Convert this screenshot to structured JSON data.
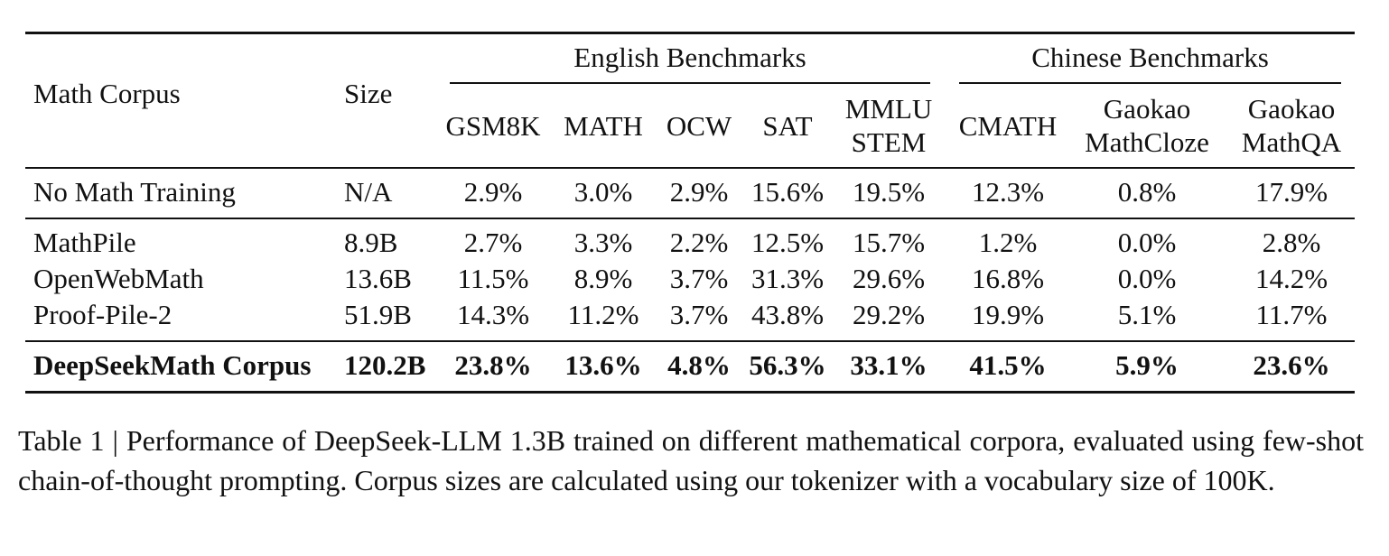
{
  "table": {
    "header": {
      "corpus": "Math Corpus",
      "size": "Size",
      "groups": [
        {
          "label": "English Benchmarks",
          "columns": [
            [
              "GSM8K"
            ],
            [
              "MATH"
            ],
            [
              "OCW"
            ],
            [
              "SAT"
            ],
            [
              "MMLU",
              "STEM"
            ]
          ]
        },
        {
          "label": "Chinese Benchmarks",
          "columns": [
            [
              "CMATH"
            ],
            [
              "Gaokao",
              "MathCloze"
            ],
            [
              "Gaokao",
              "MathQA"
            ]
          ]
        }
      ]
    },
    "row_groups": [
      {
        "bold": false,
        "rows": [
          [
            "No Math Training",
            "N/A",
            "2.9%",
            "3.0%",
            "2.9%",
            "15.6%",
            "19.5%",
            "12.3%",
            "0.8%",
            "17.9%"
          ]
        ]
      },
      {
        "bold": false,
        "rows": [
          [
            "MathPile",
            "8.9B",
            "2.7%",
            "3.3%",
            "2.2%",
            "12.5%",
            "15.7%",
            "1.2%",
            "0.0%",
            "2.8%"
          ],
          [
            "OpenWebMath",
            "13.6B",
            "11.5%",
            "8.9%",
            "3.7%",
            "31.3%",
            "29.6%",
            "16.8%",
            "0.0%",
            "14.2%"
          ],
          [
            "Proof-Pile-2",
            "51.9B",
            "14.3%",
            "11.2%",
            "3.7%",
            "43.8%",
            "29.2%",
            "19.9%",
            "5.1%",
            "11.7%"
          ]
        ]
      },
      {
        "bold": true,
        "rows": [
          [
            "DeepSeekMath Corpus",
            "120.2B",
            "23.8%",
            "13.6%",
            "4.8%",
            "56.3%",
            "33.1%",
            "41.5%",
            "5.9%",
            "23.6%"
          ]
        ]
      }
    ],
    "caption": "Table 1 | Performance of DeepSeek-LLM 1.3B trained on different mathematical corpora, evaluated using few-shot chain-of-thought prompting. Corpus sizes are calculated using our tokenizer with a vocabulary size of 100K."
  }
}
